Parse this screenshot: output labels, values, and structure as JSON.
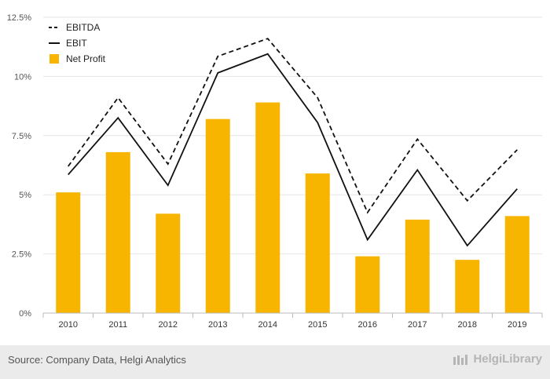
{
  "chart_data": {
    "type": "bar",
    "categories": [
      "2010",
      "2011",
      "2012",
      "2013",
      "2014",
      "2015",
      "2016",
      "2017",
      "2018",
      "2019"
    ],
    "series": [
      {
        "name": "EBITDA",
        "kind": "line",
        "style": "dashed",
        "color": "#111111",
        "values": [
          6.2,
          9.1,
          6.3,
          10.85,
          11.6,
          9.1,
          4.25,
          7.35,
          4.75,
          6.9
        ]
      },
      {
        "name": "EBIT",
        "kind": "line",
        "style": "solid",
        "color": "#111111",
        "values": [
          5.85,
          8.25,
          5.4,
          10.15,
          10.95,
          8.05,
          3.1,
          6.05,
          2.85,
          5.25
        ]
      },
      {
        "name": "Net Profit",
        "kind": "bar",
        "color": "#f7b500",
        "values": [
          5.1,
          6.8,
          4.2,
          8.2,
          8.9,
          5.9,
          2.4,
          3.95,
          2.25,
          4.1
        ]
      }
    ],
    "yticks": [
      "0%",
      "2.5%",
      "5%",
      "7.5%",
      "10%",
      "12.5%"
    ],
    "ylim": [
      0,
      12.5
    ],
    "grid": true,
    "legend_position": "top-left"
  },
  "footer": {
    "source": "Source: Company Data, Helgi Analytics",
    "brand": "HelgiLibrary"
  },
  "colors": {
    "bar": "#f7b500",
    "line": "#111111",
    "grid": "#e6e6e6",
    "footer_bg": "#ebebeb"
  }
}
